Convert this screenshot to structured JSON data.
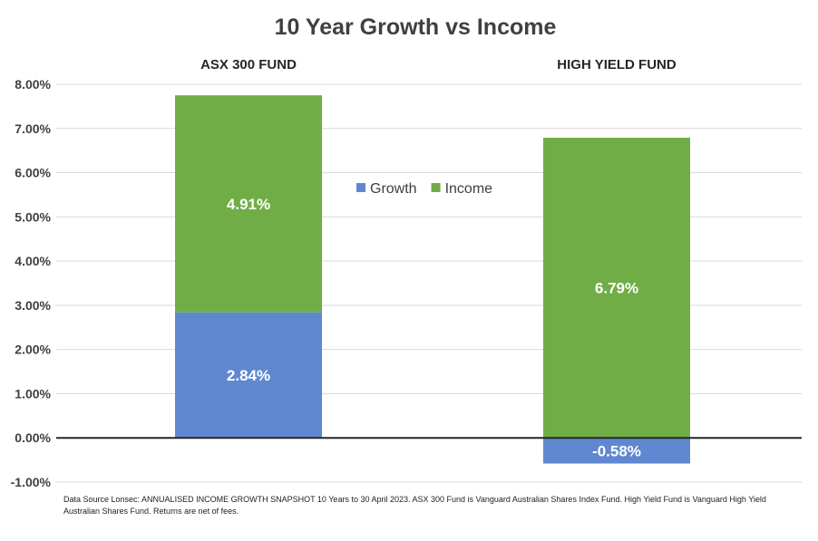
{
  "chart_data": {
    "type": "bar",
    "stacked": true,
    "title": "10 Year Growth vs Income",
    "categories": [
      "ASX 300 FUND",
      "HIGH YIELD FUND"
    ],
    "series": [
      {
        "name": "Growth",
        "values": [
          2.84,
          -0.58
        ],
        "labels": [
          "2.84%",
          "-0.58%"
        ],
        "color": "#6088d0"
      },
      {
        "name": "Income",
        "values": [
          4.91,
          6.79
        ],
        "labels": [
          "4.91%",
          "6.79%"
        ],
        "color": "#70ad47"
      }
    ],
    "ylim": [
      -1,
      8
    ],
    "y_ticks": [
      "-1.00%",
      "0.00%",
      "1.00%",
      "2.00%",
      "3.00%",
      "4.00%",
      "5.00%",
      "6.00%",
      "7.00%",
      "8.00%"
    ],
    "grid": true,
    "legend_position": "center",
    "xlabel": "",
    "ylabel": ""
  },
  "footnote": "Data Source Lonsec: ANNUALISED INCOME GROWTH SNAPSHOT 10 Years to 30 April 2023. ASX 300 Fund is Vanguard Australian Shares Index Fund. High Yield Fund is Vanguard High Yield Australian Shares Fund. Returns are net of fees."
}
